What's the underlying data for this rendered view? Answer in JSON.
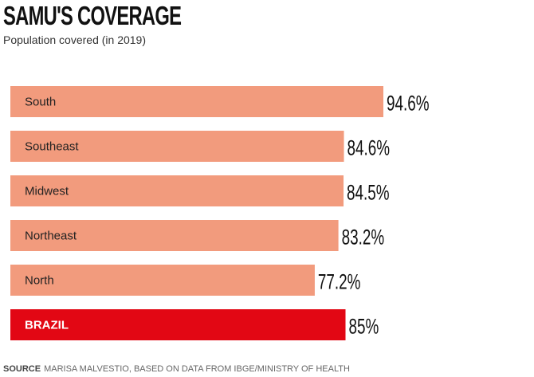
{
  "title": "SAMU'S COVERAGE",
  "subtitle": "Population covered (in 2019)",
  "source": {
    "label": "SOURCE",
    "text": "MARISA MALVESTIO, BASED ON DATA FROM IBGE/MINISTRY OF HEALTH"
  },
  "colors": {
    "region_bar": "#f29b7d",
    "total_bar": "#e20714"
  },
  "chart_data": {
    "type": "bar",
    "orientation": "horizontal",
    "title": "SAMU'S COVERAGE",
    "subtitle": "Population covered (in 2019)",
    "categories": [
      "South",
      "Southeast",
      "Midwest",
      "Northeast",
      "North",
      "BRAZIL"
    ],
    "values": [
      94.6,
      84.6,
      84.5,
      83.2,
      77.2,
      85
    ],
    "value_labels": [
      "94.6%",
      "84.6%",
      "84.5%",
      "83.2%",
      "77.2%",
      "85%"
    ],
    "highlight": "BRAZIL",
    "unit": "%",
    "grid": false,
    "legend": "none"
  }
}
